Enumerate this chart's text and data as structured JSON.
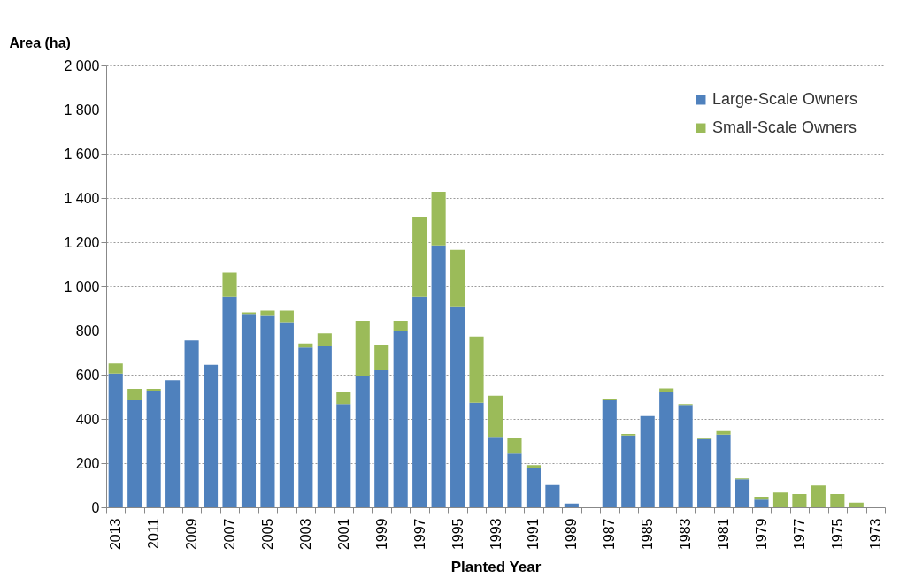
{
  "chart_data": {
    "type": "bar",
    "xlabel": "Planted Year",
    "ylabel": "Area (ha)",
    "categories": [
      "2013",
      null,
      "2011",
      null,
      "2009",
      null,
      "2007",
      null,
      "2005",
      null,
      "2003",
      null,
      "2001",
      null,
      "1999",
      null,
      "1997",
      null,
      "1995",
      null,
      "1993",
      null,
      "1991",
      null,
      "1989",
      null,
      "1987",
      null,
      "1985",
      null,
      "1983",
      null,
      "1981",
      null,
      "1979",
      null,
      "1977",
      null,
      "1975",
      null,
      "1973"
    ],
    "series": [
      {
        "name": "Large-Scale Owners",
        "color": "#4f81bd",
        "values": [
          605,
          485,
          528,
          575,
          755,
          645,
          953,
          875,
          870,
          838,
          723,
          729,
          467,
          596,
          620,
          800,
          953,
          1185,
          909,
          473,
          319,
          243,
          177,
          101,
          17,
          null,
          486,
          325,
          413,
          523,
          463,
          309,
          329,
          127,
          35,
          null,
          null,
          null,
          null,
          null,
          null
        ]
      },
      {
        "name": "Small-Scale Owners",
        "color": "#9bbb59",
        "values": [
          46,
          51,
          8,
          null,
          null,
          null,
          109,
          7,
          20,
          52,
          18,
          58,
          57,
          248,
          116,
          44,
          360,
          243,
          256,
          300,
          186,
          70,
          14,
          null,
          null,
          null,
          6,
          7,
          null,
          15,
          4,
          5,
          16,
          4,
          13,
          67,
          60,
          99,
          60,
          21,
          null
        ]
      }
    ],
    "stacked": true,
    "ylim": [
      0,
      2000
    ],
    "yticks": [
      0,
      200,
      400,
      600,
      800,
      {
        "value": 1000,
        "label": "1 000"
      },
      {
        "value": 1200,
        "label": "1 200"
      },
      {
        "value": 1400,
        "label": "1 400"
      },
      {
        "value": 1600,
        "label": "1 600"
      },
      {
        "value": 1800,
        "label": "1 800"
      },
      {
        "value": 2000,
        "label": "2 000"
      }
    ],
    "grid": "y",
    "legend": "top right"
  }
}
